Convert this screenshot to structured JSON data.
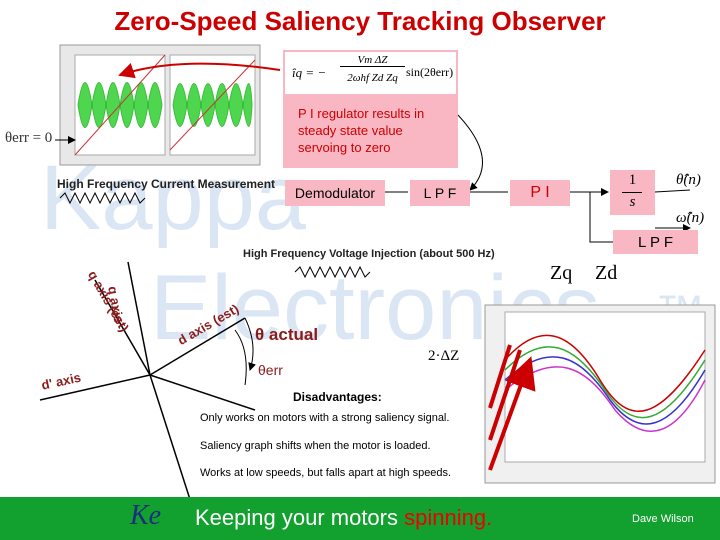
{
  "title": "Zero-Speed Saliency Tracking Observer",
  "watermark": {
    "line1": "Kappa",
    "line2": "Electronics",
    "tm": "™"
  },
  "formula": {
    "lhs": "îq = −",
    "numerator": "Vm ΔZ",
    "denominator": "2ωhf Zd Zq",
    "tail": "sin(2θerr)"
  },
  "pi_note": "P I regulator results in steady state value servoing to zero",
  "theta_err_zero": "θerr = 0",
  "current_measurement": "High Frequency Current Measurement",
  "blocks": {
    "demodulator": "Demodulator",
    "lpf": "L P F",
    "pi": "P I",
    "integrator_num": "1",
    "integrator_den": "s",
    "lpf2": "L P F"
  },
  "outputs": {
    "theta": "θ̂(n)",
    "omega": "ω̂(n)"
  },
  "voltage_injection": "High Frequency Voltage Injection (about 500 Hz)",
  "impedances": {
    "zq": "Zq",
    "zd": "Zd"
  },
  "axes": {
    "q": "q axis",
    "q_est": "q axis (est)",
    "d_est": "d axis (est)",
    "d_prime": "d' axis"
  },
  "angles": {
    "actual": "θ actual",
    "err": "θerr"
  },
  "delta_z": "2·ΔZ",
  "disadvantages": {
    "heading": "Disadvantages:",
    "items": [
      "Only works on motors with a strong saliency signal.",
      "Saliency graph shifts when the motor is loaded.",
      "Works at low speeds, but falls apart at high speeds."
    ]
  },
  "footer": {
    "logo": "Ke",
    "slogan": "Keeping your motors",
    "slogan_em": "spinning.",
    "author": "Dave Wilson"
  }
}
